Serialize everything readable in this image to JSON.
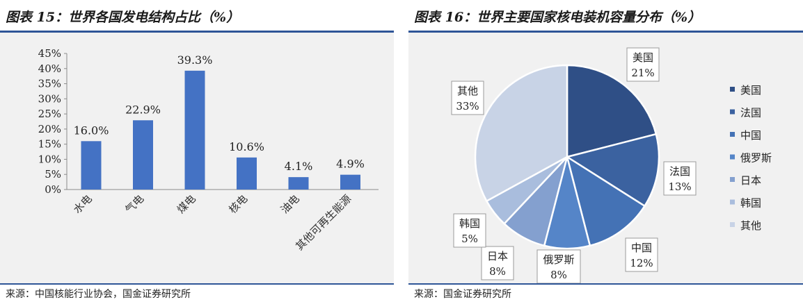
{
  "left": {
    "title": "图表 15：世界各国发电结构占比（%）",
    "source": "来源：中国核能行业协会，国金证券研究所"
  },
  "right": {
    "title": "图表 16：世界主要国家核电装机容量分布（%）",
    "source": "来源：国金证券研究所"
  },
  "chart_data": [
    {
      "type": "bar",
      "title": "图表 15：世界各国发电结构占比（%）",
      "categories": [
        "水电",
        "气电",
        "煤电",
        "核电",
        "油电",
        "其他可再生能源"
      ],
      "values": [
        16.0,
        22.9,
        39.3,
        10.6,
        4.1,
        4.9
      ],
      "data_labels": [
        "16.0%",
        "22.9%",
        "39.3%",
        "10.6%",
        "4.1%",
        "4.9%"
      ],
      "y_ticks": [
        "0%",
        "5%",
        "10%",
        "15%",
        "20%",
        "25%",
        "30%",
        "35%",
        "40%",
        "45%"
      ],
      "ylim": [
        0,
        45
      ],
      "bar_color": "#4472c4",
      "grid": false
    },
    {
      "type": "pie",
      "title": "图表 16：世界主要国家核电装机容量分布（%）",
      "slices": [
        {
          "name": "美国",
          "value": 21,
          "label": "21%",
          "color": "#2f4f86"
        },
        {
          "name": "法国",
          "value": 13,
          "label": "13%",
          "color": "#3b62a0"
        },
        {
          "name": "中国",
          "value": 12,
          "label": "12%",
          "color": "#4472b5"
        },
        {
          "name": "俄罗斯",
          "value": 8,
          "label": "8%",
          "color": "#5585c8"
        },
        {
          "name": "日本",
          "value": 8,
          "label": "8%",
          "color": "#84a0cf"
        },
        {
          "name": "韩国",
          "value": 5,
          "label": "5%",
          "color": "#a9bddd"
        },
        {
          "name": "其他",
          "value": 33,
          "label": "33%",
          "color": "#c8d3e6"
        }
      ],
      "legend_position": "right"
    }
  ]
}
